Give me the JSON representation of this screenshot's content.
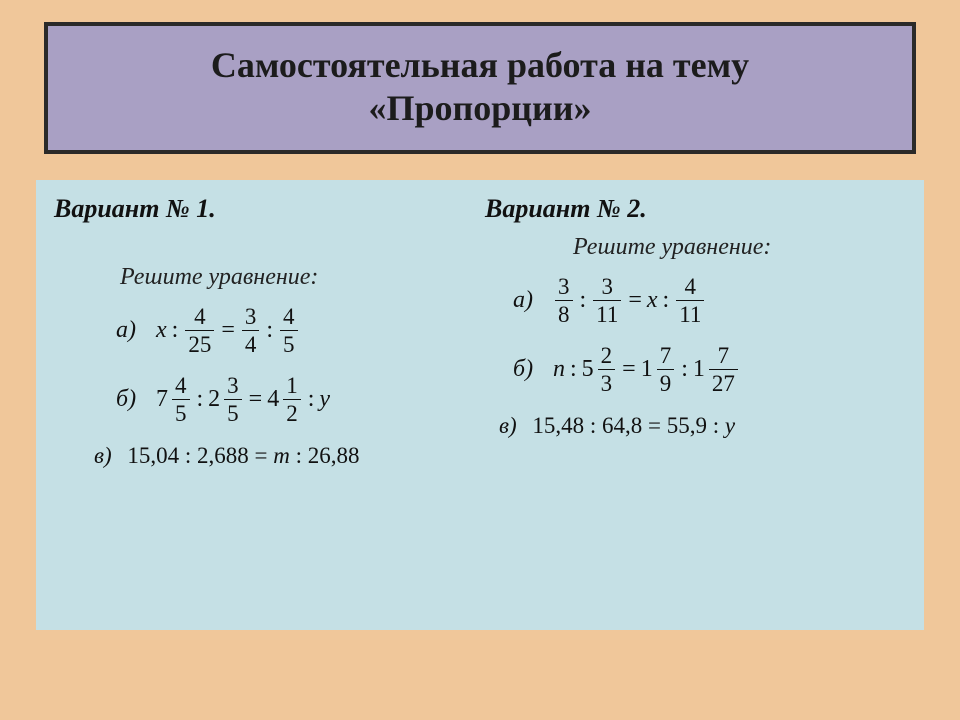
{
  "colors": {
    "page_bg": "#f0c79a",
    "title_bg": "#a9a0c4",
    "title_border": "#2b2a29",
    "content_bg": "#c5e0e5",
    "text": "#111111"
  },
  "typography": {
    "title_fontsize": 36,
    "variant_fontsize": 26,
    "body_fontsize": 24,
    "math_fontsize": 23,
    "title_weight": "bold",
    "variant_weight": "bold",
    "italic_variant": true,
    "italic_instruction": true
  },
  "title": {
    "line1": "Самостоятельная работа на тему",
    "line2": "«Пропорции»"
  },
  "v1": {
    "heading": "Вариант №  1.",
    "instruction": "Решите  уравнение:",
    "a": {
      "label": "а)",
      "var": "x",
      "f1": {
        "num": "4",
        "den": "25"
      },
      "f2": {
        "num": "3",
        "den": "4"
      },
      "f3": {
        "num": "4",
        "den": "5"
      }
    },
    "b": {
      "label": "б)",
      "m1": {
        "whole": "7",
        "num": "4",
        "den": "5"
      },
      "m2": {
        "whole": "2",
        "num": "3",
        "den": "5"
      },
      "m3": {
        "whole": "4",
        "num": "1",
        "den": "2"
      },
      "var": "y"
    },
    "c": {
      "label": "в)",
      "lhs_a": "15,04",
      "lhs_b": "2,688",
      "var": "m",
      "rhs_b": "26,88"
    }
  },
  "v2": {
    "heading": "Вариант №  2.",
    "instruction": "Решите  уравнение:",
    "a": {
      "label": "а)",
      "f1": {
        "num": "3",
        "den": "8"
      },
      "f2": {
        "num": "3",
        "den": "11"
      },
      "var": "x",
      "f3": {
        "num": "4",
        "den": "11"
      }
    },
    "b": {
      "label": "б)",
      "var": "n",
      "m1": {
        "whole": "5",
        "num": "2",
        "den": "3"
      },
      "m2": {
        "whole": "1",
        "num": "7",
        "den": "9"
      },
      "m3": {
        "whole": "1",
        "num": "7",
        "den": "27"
      }
    },
    "c": {
      "label": "в)",
      "lhs_a": "15,48",
      "lhs_b": "64,8",
      "rhs_a": "55,9",
      "var": "y"
    }
  }
}
